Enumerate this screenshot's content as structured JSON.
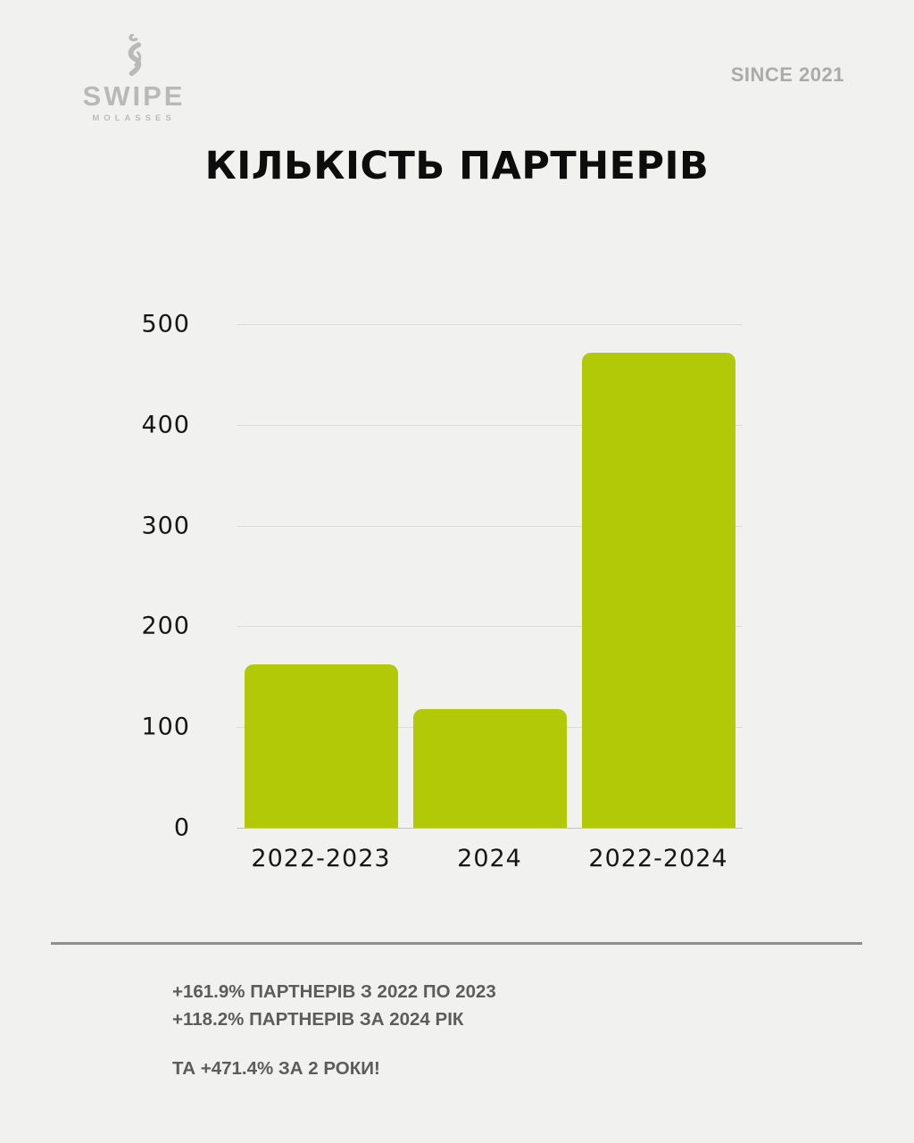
{
  "page": {
    "background": "#f1f1ef"
  },
  "header": {
    "logo": {
      "brand": "SWIPE",
      "sub": "MOLASSES",
      "icon": "smoke-swirl-icon",
      "color": "#b9b9b9"
    },
    "since_label": "SINCE 2021"
  },
  "title": "КІЛЬКІСТЬ ПАРТНЕРІВ",
  "chart_data": {
    "type": "bar",
    "categories": [
      "2022-2023",
      "2024",
      "2022-2024"
    ],
    "values": [
      161.9,
      118.2,
      471.4
    ],
    "title": "КІЛЬКІСТЬ ПАРТНЕРІВ",
    "xlabel": "",
    "ylabel": "",
    "ylim": [
      0,
      500
    ],
    "yticks": [
      0,
      100,
      200,
      300,
      400,
      500
    ],
    "bar_color": "#b2c908",
    "grid": true,
    "legend": false
  },
  "footer": {
    "lines": [
      "+161.9% ПАРТНЕРІВ З 2022 ПО 2023",
      "+118.2% ПАРТНЕРІВ ЗА 2024 РІК"
    ],
    "highlight": "ТА +471.4% ЗА 2 РОКИ!"
  }
}
